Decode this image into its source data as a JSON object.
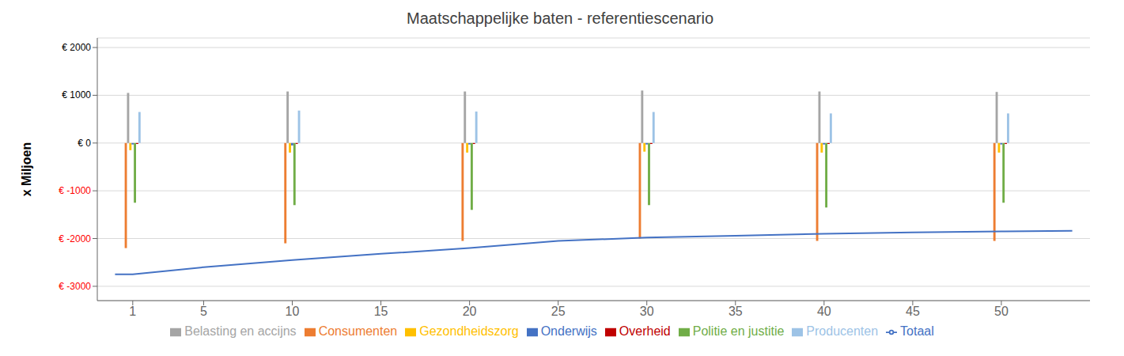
{
  "chart_data": {
    "type": "bar",
    "title": "Maatschappelijke baten - referentiescenario",
    "y_label": "x Miljoen",
    "x": [
      1,
      10,
      20,
      30,
      40,
      50
    ],
    "xlim": [
      -1,
      55
    ],
    "xticks": [
      1,
      5,
      10,
      15,
      20,
      25,
      30,
      35,
      40,
      45,
      50
    ],
    "ylim": [
      -3300,
      2200
    ],
    "yticks": [
      {
        "value": -3000,
        "label": "€ -3000",
        "color": "#FF0000"
      },
      {
        "value": -2000,
        "label": "€ -2000",
        "color": "#FF0000"
      },
      {
        "value": -1000,
        "label": "€ -1000",
        "color": "#FF0000"
      },
      {
        "value": 0,
        "label": "€ 0",
        "color": "#000000"
      },
      {
        "value": 1000,
        "label": "€ 1000",
        "color": "#000000"
      },
      {
        "value": 2000,
        "label": "€ 2000",
        "color": "#000000"
      }
    ],
    "grid": true,
    "legend": "bottom",
    "series": [
      {
        "name": "Consumenten",
        "color": "#ED7D31",
        "values": [
          -2200,
          -2100,
          -2050,
          -2000,
          -2050,
          -2050
        ]
      },
      {
        "name": "Belasting en accijns",
        "color": "#A5A5A5",
        "values": [
          1050,
          1080,
          1080,
          1100,
          1080,
          1070
        ]
      },
      {
        "name": "Gezondheidszorg",
        "color": "#FFC000",
        "values": [
          -150,
          -200,
          -200,
          -180,
          -200,
          -200
        ]
      },
      {
        "name": "Onderwijs",
        "color": "#4472C4",
        "values": [
          -30,
          -50,
          -30,
          -30,
          -30,
          -30
        ]
      },
      {
        "name": "Politie en justitie",
        "color": "#70AD47",
        "values": [
          -1250,
          -1300,
          -1400,
          -1300,
          -1350,
          -1250
        ]
      },
      {
        "name": "Overheid",
        "color": "#C00000",
        "values": [
          -20,
          -20,
          -20,
          -20,
          -20,
          -20
        ]
      },
      {
        "name": "Producenten",
        "color": "#9DC3E6",
        "values": [
          650,
          680,
          660,
          650,
          620,
          620
        ]
      },
      {
        "name": "Totaal",
        "type": "line",
        "color": "#4472C4",
        "x": [
          0,
          1,
          5,
          10,
          15,
          20,
          25,
          30,
          35,
          40,
          45,
          50,
          54
        ],
        "values": [
          -2750,
          -2750,
          -2600,
          -2450,
          -2320,
          -2200,
          -2050,
          -1980,
          -1940,
          -1900,
          -1870,
          -1850,
          -1840
        ]
      }
    ]
  }
}
